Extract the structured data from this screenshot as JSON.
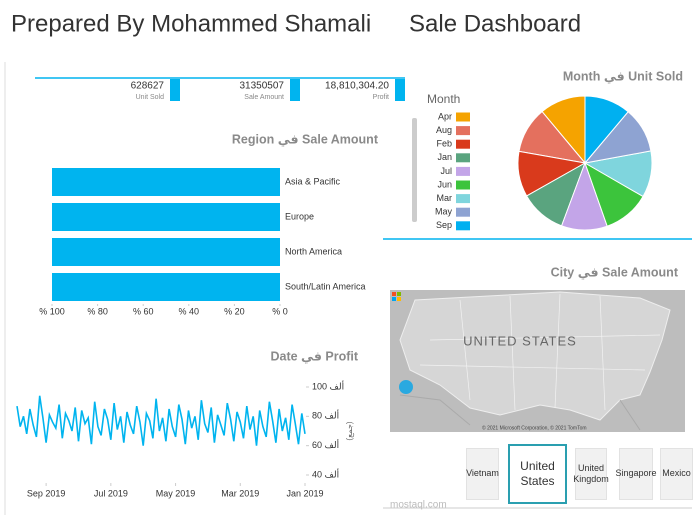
{
  "header": {
    "title": "Prepared By Mohammed Shamali",
    "subtitle": "Sale Dashboard"
  },
  "kpis": [
    {
      "value": "628627",
      "label": "Unit Sold"
    },
    {
      "value": "31350507",
      "label": "Sale Amount"
    },
    {
      "value": "18,810,304.20",
      "label": "Profit"
    }
  ],
  "chart_data": [
    {
      "type": "bar",
      "title": "Region في Sale Amount",
      "categories": [
        "Asia & Pacific",
        "Europe",
        "North America",
        "South/Latin America"
      ],
      "values": [
        100,
        100,
        100,
        100
      ],
      "color": "#00b4ef",
      "xlim": [
        0,
        100
      ],
      "x_reversed": true,
      "xticks": [
        {
          "value": 100,
          "label": "% 100"
        },
        {
          "value": 80,
          "label": "% 80"
        },
        {
          "value": 60,
          "label": "% 60"
        },
        {
          "value": 40,
          "label": "% 40"
        },
        {
          "value": 20,
          "label": "% 20"
        },
        {
          "value": 0,
          "label": "% 0"
        }
      ]
    },
    {
      "type": "pie",
      "title": "Month في Unit Sold",
      "legend_title": "Month",
      "categories": [
        "Apr",
        "Aug",
        "Feb",
        "Jan",
        "Jul",
        "Jun",
        "Mar",
        "May",
        "Sep"
      ],
      "values": [
        69627,
        70000,
        69000,
        70000,
        69500,
        71000,
        70500,
        69000,
        70000
      ],
      "colors": [
        "#f5a300",
        "#e4705e",
        "#d93a1c",
        "#5aa47f",
        "#c3a5e8",
        "#3cc43c",
        "#7fd5dd",
        "#8ea3d2",
        "#00b0f0"
      ]
    },
    {
      "type": "line",
      "title": "Date في Profit",
      "y_label": "(جمع)",
      "color": "#00b4ef",
      "x_reversed": true,
      "y_axis": "right",
      "ylim": [
        40000,
        100000
      ],
      "yticks": [
        {
          "value": 100000,
          "label": "100 ألف"
        },
        {
          "value": 80000,
          "label": "80 ألف"
        },
        {
          "value": 60000,
          "label": "60 ألف"
        },
        {
          "value": 40000,
          "label": "40 ألف"
        }
      ],
      "xticks": [
        {
          "value": 80,
          "label": "Sep 2019"
        },
        {
          "value": 60,
          "label": "Jul 2019"
        },
        {
          "value": 40,
          "label": "May 2019"
        },
        {
          "value": 20,
          "label": "Mar 2019"
        },
        {
          "value": 0,
          "label": "Jan 2019"
        }
      ],
      "values": [
        68000,
        82000,
        61000,
        75000,
        88000,
        64000,
        79000,
        70000,
        85000,
        62000,
        77000,
        90000,
        66000,
        73000,
        84000,
        60000,
        80000,
        71000,
        87000,
        65000,
        76000,
        83000,
        63000,
        78000,
        89000,
        67000,
        74000,
        81000,
        62000,
        86000,
        69000,
        75000,
        91000,
        64000,
        80000,
        72000,
        84000,
        61000,
        78000,
        88000,
        66000,
        73000,
        85000,
        63000,
        79000,
        70000,
        92000,
        65000,
        77000,
        82000,
        60000,
        76000,
        87000,
        68000,
        74000,
        83000,
        62000,
        80000,
        71000,
        89000,
        64000,
        78000,
        85000,
        67000,
        73000,
        90000,
        61000,
        79000,
        75000,
        84000,
        63000,
        86000,
        70000,
        77000,
        82000,
        65000,
        88000,
        72000,
        76000,
        81000,
        62000,
        79000,
        94000,
        66000,
        74000,
        85000,
        68000,
        80000,
        73000,
        87000
      ]
    }
  ],
  "map": {
    "title": "City في Sale Amount",
    "label": "UNITED STATES",
    "credit": "© 2021 Microsoft Corporation, © 2021 TomTom"
  },
  "slicer": {
    "items": [
      "Vietnam",
      "United States",
      "United Kingdom",
      "Singapore",
      "Mexico"
    ],
    "selected": 1
  },
  "watermark": "mostaql.com"
}
